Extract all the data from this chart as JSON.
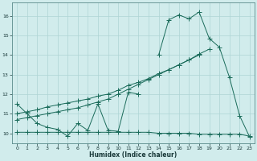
{
  "xlabel": "Humidex (Indice chaleur)",
  "x_values": [
    0,
    1,
    2,
    3,
    4,
    5,
    6,
    7,
    8,
    9,
    10,
    11,
    12,
    13,
    14,
    15,
    16,
    17,
    18,
    19,
    20,
    21,
    22,
    23
  ],
  "line1_y": [
    11.5,
    11.0,
    10.5,
    10.3,
    10.2,
    9.85,
    10.5,
    10.15,
    11.5,
    10.15,
    10.1,
    12.1,
    12.0,
    null,
    14.0,
    15.8,
    16.05,
    15.85,
    16.2,
    14.85,
    14.4,
    12.85,
    10.9,
    9.8
  ],
  "line2_y": [
    11.0,
    11.1,
    11.2,
    11.35,
    11.45,
    11.55,
    11.65,
    11.75,
    11.9,
    12.0,
    12.2,
    12.45,
    12.6,
    12.8,
    13.05,
    13.25,
    13.5,
    13.75,
    14.05,
    14.3,
    null,
    null,
    null,
    null
  ],
  "line3_y": [
    10.7,
    10.8,
    10.9,
    11.0,
    11.1,
    11.2,
    11.3,
    11.45,
    11.6,
    11.75,
    12.0,
    12.25,
    12.5,
    12.75,
    13.0,
    13.25,
    13.5,
    13.75,
    14.0,
    null,
    null,
    null,
    null,
    null
  ],
  "line4_y": [
    10.05,
    10.05,
    10.05,
    10.05,
    10.05,
    10.05,
    10.05,
    10.05,
    10.05,
    10.05,
    10.05,
    10.05,
    10.05,
    10.05,
    10.0,
    10.0,
    10.0,
    10.0,
    9.95,
    9.95,
    9.95,
    9.95,
    9.95,
    9.85
  ],
  "ylim": [
    9.5,
    16.7
  ],
  "xlim": [
    -0.5,
    23.5
  ],
  "yticks": [
    10,
    11,
    12,
    13,
    14,
    15,
    16
  ],
  "xticks": [
    0,
    1,
    2,
    3,
    4,
    5,
    6,
    7,
    8,
    9,
    10,
    11,
    12,
    13,
    14,
    15,
    16,
    17,
    18,
    19,
    20,
    21,
    22,
    23
  ],
  "line_color": "#1a6b5a",
  "bg_color": "#d1ecec",
  "grid_color": "#aed4d4",
  "markersize": 2.5
}
